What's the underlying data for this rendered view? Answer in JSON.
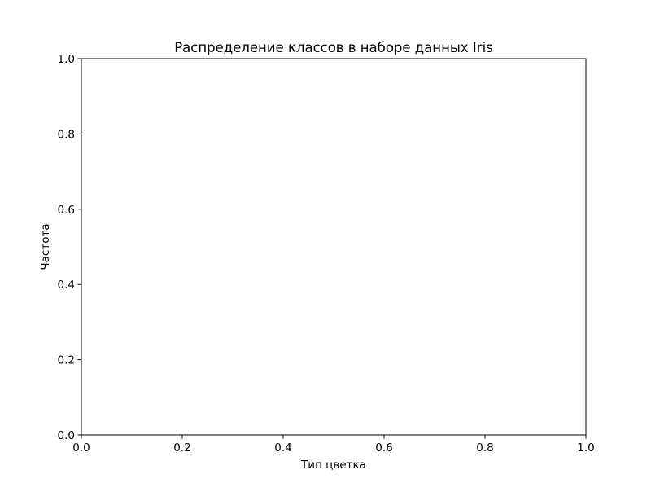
{
  "chart_data": {
    "type": "bar",
    "title": "Распределение классов в наборе данных Iris",
    "xlabel": "Тип цветка",
    "ylabel": "Частота",
    "xlim": [
      0.0,
      1.0
    ],
    "ylim": [
      0.0,
      1.0
    ],
    "xticks": [
      "0.0",
      "0.2",
      "0.4",
      "0.6",
      "0.8",
      "1.0"
    ],
    "yticks": [
      "0.0",
      "0.2",
      "0.4",
      "0.6",
      "0.8",
      "1.0"
    ],
    "categories": [],
    "values": [],
    "grid": false,
    "legend": "none"
  }
}
